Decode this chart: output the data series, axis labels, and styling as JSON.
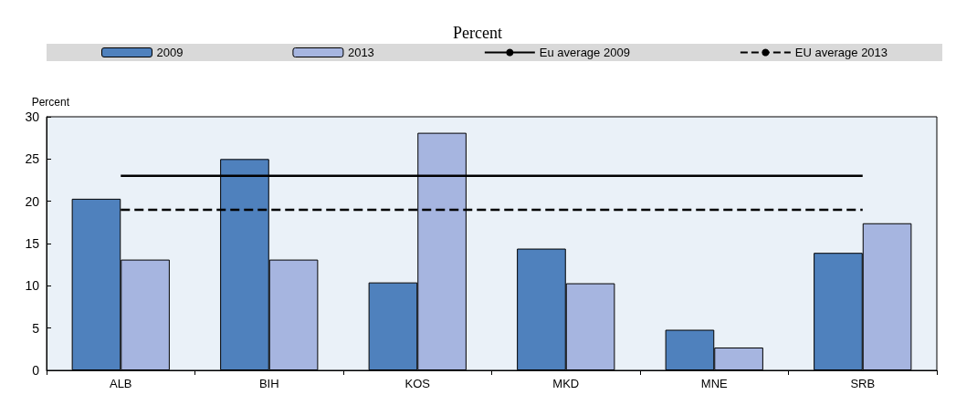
{
  "chart_data": {
    "type": "bar",
    "title": "Percent",
    "ylabel": "Percent",
    "categories": [
      "ALB",
      "BIH",
      "KOS",
      "MKD",
      "MNE",
      "SRB"
    ],
    "series": [
      {
        "name": "2009",
        "color": "#4f81bd",
        "values": [
          20.3,
          25,
          10.4,
          14.4,
          4.8,
          13.9
        ]
      },
      {
        "name": "2013",
        "color": "#a6b5e0",
        "values": [
          13.1,
          13.1,
          28.1,
          10.3,
          2.7,
          17.4
        ]
      },
      {
        "name": "Eu average 2009",
        "type": "line",
        "color": "#000000",
        "line_style": "solid",
        "values": [
          23,
          23,
          23,
          23,
          23,
          23
        ]
      },
      {
        "name": "EU average 2013",
        "type": "line",
        "color": "#000000",
        "line_style": "dashed",
        "values": [
          19,
          19,
          19,
          19,
          19,
          19
        ]
      }
    ],
    "ylim": [
      0,
      30
    ],
    "yticks": [
      0,
      5,
      10,
      15,
      20,
      25,
      30
    ],
    "grid": false,
    "legend": "top",
    "marker": "none"
  }
}
